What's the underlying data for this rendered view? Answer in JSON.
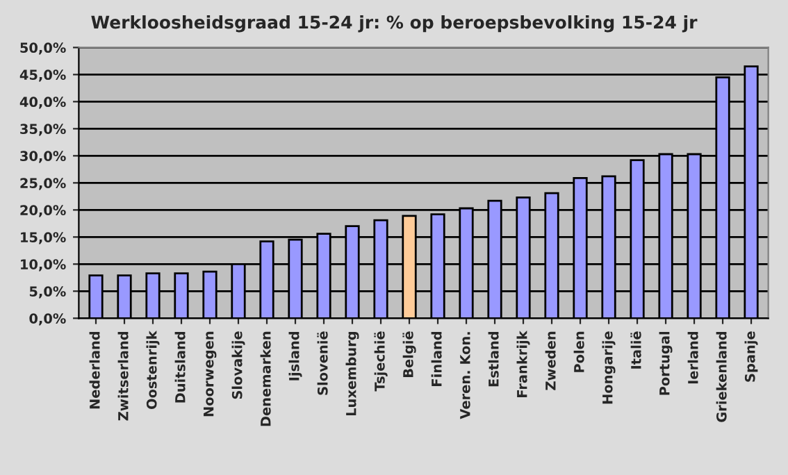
{
  "chart_data": {
    "type": "bar",
    "title": "Werkloosheidsgraad 15-24 jr: % op beroepsbevolking 15-24 jr",
    "categories": [
      "Nederland",
      "Zwitserland",
      "Oostenrijk",
      "Duitsland",
      "Noorwegen",
      "Slovakije",
      "Denemarken",
      "Ijsland",
      "Slovenië",
      "Luxemburg",
      "Tsjechië",
      "België",
      "Finland",
      "Veren. Kon.",
      "Estland",
      "Frankrijk",
      "Zweden",
      "Polen",
      "Hongarije",
      "Italië",
      "Portugal",
      "Ierland",
      "Griekenland",
      "Spanje"
    ],
    "values": [
      7.9,
      7.9,
      8.3,
      8.3,
      8.6,
      10.0,
      14.2,
      14.5,
      15.6,
      17.0,
      18.1,
      18.9,
      19.2,
      20.3,
      21.7,
      22.3,
      23.1,
      25.9,
      26.2,
      29.2,
      30.3,
      30.3,
      44.5,
      46.5
    ],
    "colors": [
      "#9999ff",
      "#9999ff",
      "#9999ff",
      "#9999ff",
      "#9999ff",
      "#9999ff",
      "#9999ff",
      "#9999ff",
      "#9999ff",
      "#9999ff",
      "#9999ff",
      "#ffcc99",
      "#9999ff",
      "#9999ff",
      "#9999ff",
      "#9999ff",
      "#9999ff",
      "#9999ff",
      "#9999ff",
      "#9999ff",
      "#9999ff",
      "#9999ff",
      "#9999ff",
      "#9999ff"
    ],
    "ylim": [
      0,
      50
    ],
    "yticks": [
      {
        "value": 0,
        "label": "0,0%"
      },
      {
        "value": 5,
        "label": "5,0%"
      },
      {
        "value": 10,
        "label": "10,0%"
      },
      {
        "value": 15,
        "label": "15,0%"
      },
      {
        "value": 20,
        "label": "20,0%"
      },
      {
        "value": 25,
        "label": "25,0%"
      },
      {
        "value": 30,
        "label": "30,0%"
      },
      {
        "value": 35,
        "label": "35,0%"
      },
      {
        "value": 40,
        "label": "40,0%"
      },
      {
        "value": 45,
        "label": "45,0%"
      },
      {
        "value": 50,
        "label": "50,0%"
      }
    ],
    "grid": "y"
  }
}
